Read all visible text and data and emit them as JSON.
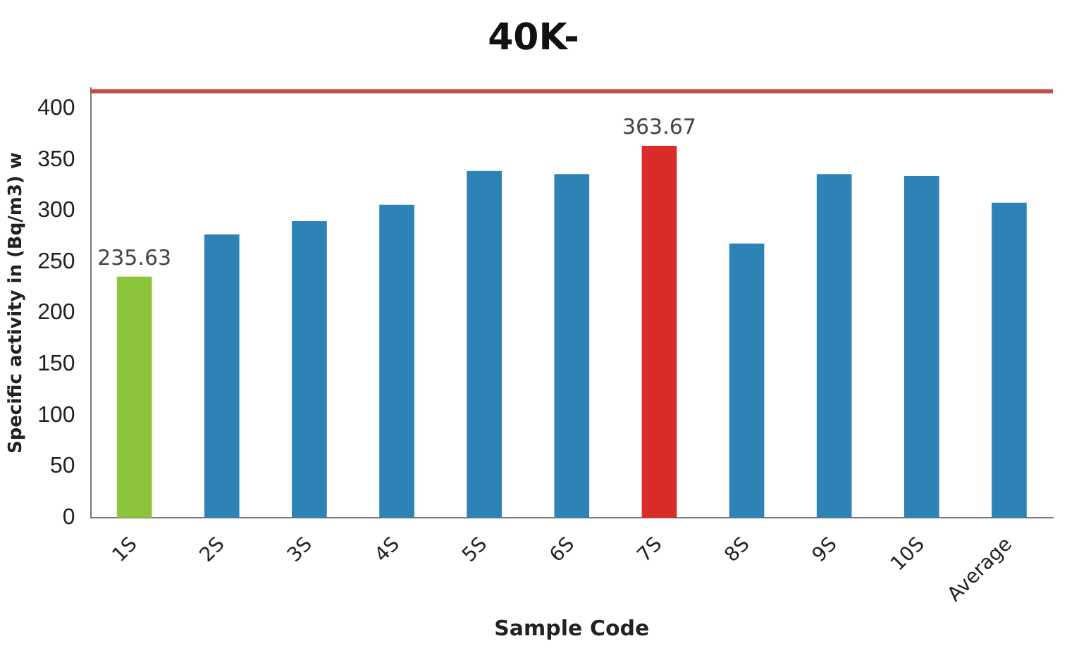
{
  "chart_data": {
    "type": "bar",
    "title": "40K-",
    "xlabel": "Sample Code",
    "ylabel": "Specific activity in (Bq/m3) w",
    "categories": [
      "1S",
      "2S",
      "3S",
      "4S",
      "5S",
      "6S",
      "7S",
      "8S",
      "9S",
      "10S",
      "Average"
    ],
    "values": [
      235.63,
      277,
      290,
      306,
      339,
      336,
      363.67,
      268,
      336,
      334,
      308
    ],
    "colors": [
      "#8cc43c",
      "#2e83b6",
      "#2e83b6",
      "#2e83b6",
      "#2e83b6",
      "#2e83b6",
      "#d92b27",
      "#2e83b6",
      "#2e83b6",
      "#2e83b6",
      "#2e83b6"
    ],
    "value_labels": [
      "235.63",
      null,
      null,
      null,
      null,
      null,
      "363.67",
      null,
      null,
      null,
      null
    ],
    "ylim": [
      0,
      420
    ],
    "yticks": [
      0,
      50,
      100,
      150,
      200,
      250,
      300,
      350,
      400
    ],
    "grid": false,
    "legend": false,
    "ref_lines": [
      {
        "axis": "y",
        "value": 417,
        "color": "#c0504d"
      }
    ]
  }
}
